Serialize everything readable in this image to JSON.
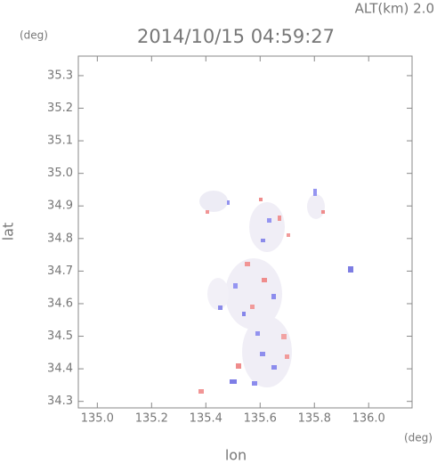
{
  "chart_data": {
    "type": "scatter",
    "title": "2014/10/15 04:59:27",
    "subtitle": "ALT(km) 2.0",
    "y_unit": "(deg)",
    "x_unit": "(deg)",
    "xlabel": "lon",
    "ylabel": "lat",
    "xlim": [
      134.93,
      136.16
    ],
    "ylim": [
      34.28,
      35.36
    ],
    "xticks": [
      {
        "value": 135,
        "label": "135.0"
      },
      135.2,
      135.4,
      135.6,
      135.8,
      {
        "value": 136,
        "label": "136.0"
      }
    ],
    "yticks": [
      34.3,
      34.4,
      34.5,
      34.6,
      34.7,
      34.8,
      34.9,
      {
        "value": 35,
        "label": "35.0"
      },
      35.1,
      35.2,
      35.3
    ]
  }
}
